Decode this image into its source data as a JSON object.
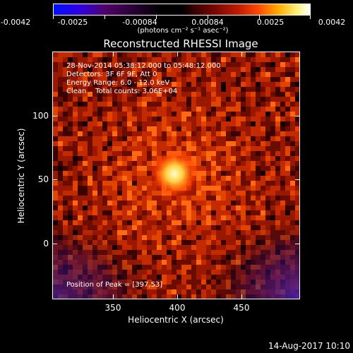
{
  "colorbar": {
    "ticks": [
      "-0.0042",
      "-0.0025",
      "-0.00084",
      "0.00084",
      "0.0025",
      "0.0042"
    ],
    "units": "(photons cm⁻² s⁻¹ asec⁻²)"
  },
  "title": "Reconstructed RHESSI Image",
  "info": {
    "time": "28-Nov-2014 05:38:12.000 to 05:48:12.000",
    "detectors": "Detectors: 3F 6F 9F, Att 0",
    "energy": "Energy Range: 6.0 - 12.0 keV",
    "clean": "Clean    Total counts: 3.06E+04",
    "peak": "Position of Peak = [397,53]"
  },
  "axes": {
    "xlabel": "Heliocentric X (arcsec)",
    "ylabel": "Heliocentric Y (arcsec)",
    "xticks": [
      "350",
      "400",
      "450"
    ],
    "yticks": [
      "100",
      "50",
      "0"
    ]
  },
  "timestamp": "14-Aug-2017 10:10",
  "colors": {
    "background": "#000000",
    "image_mid": "#8a1200",
    "peak": "#ffffc0",
    "low": "#3a0a6a"
  }
}
